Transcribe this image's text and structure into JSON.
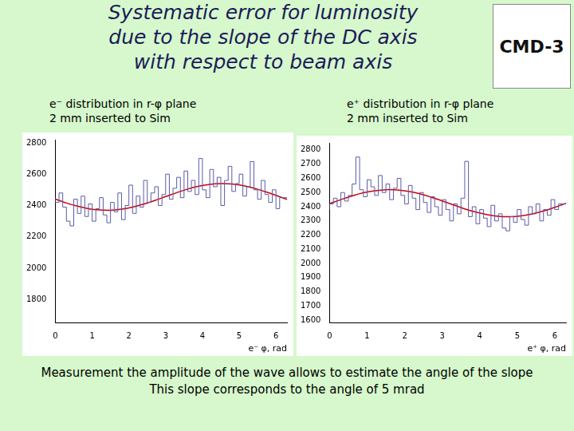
{
  "slide": {
    "title": [
      "Systematic error for luminosity",
      "due to the slope of the DC axis",
      "with respect to beam axis"
    ],
    "logo": "CMD-3",
    "caption": [
      "Measurement the amplitude of the wave allows to estimate the angle of the slope",
      "This slope corresponds to the angle of 5 mrad"
    ]
  },
  "chart_data": [
    {
      "type": "histogram",
      "subtitle": [
        "e⁻ distribution in r-φ plane",
        "2 mm inserted to Sim"
      ],
      "x_label": "e⁻ φ, rad",
      "xlim": [
        0,
        6.3
      ],
      "xticks": [
        0,
        1,
        2,
        3,
        4,
        5,
        6
      ],
      "ylim": [
        1650,
        2820
      ],
      "yticks": [
        1800,
        2000,
        2200,
        2400,
        2600,
        2800
      ],
      "grid": false,
      "legend": false,
      "bins": [
        0,
        0.1,
        0.2,
        0.3,
        0.4,
        0.5,
        0.6,
        0.7,
        0.8,
        0.9,
        1,
        1.1,
        1.2,
        1.3,
        1.4,
        1.5,
        1.6,
        1.7,
        1.8,
        1.9,
        2,
        2.1,
        2.2,
        2.3,
        2.4,
        2.5,
        2.6,
        2.7,
        2.8,
        2.9,
        3,
        3.1,
        3.2,
        3.3,
        3.4,
        3.5,
        3.6,
        3.7,
        3.8,
        3.9,
        4,
        4.1,
        4.2,
        4.3,
        4.4,
        4.5,
        4.6,
        4.7,
        4.8,
        4.9,
        5,
        5.1,
        5.2,
        5.3,
        5.4,
        5.5,
        5.6,
        5.7,
        5.8,
        5.9,
        6,
        6.1,
        6.2,
        6.3
      ],
      "counts": [
        2450,
        2420,
        2480,
        2390,
        2300,
        2270,
        2440,
        2350,
        2460,
        2330,
        2410,
        2300,
        2380,
        2450,
        2340,
        2290,
        2420,
        2360,
        2480,
        2310,
        2400,
        2530,
        2350,
        2460,
        2390,
        2560,
        2420,
        2480,
        2520,
        2400,
        2470,
        2600,
        2440,
        2510,
        2580,
        2450,
        2620,
        2490,
        2560,
        2470,
        2700,
        2500,
        2450,
        2630,
        2520,
        2580,
        2400,
        2560,
        2650,
        2490,
        2540,
        2600,
        2460,
        2520,
        2680,
        2500,
        2440,
        2560,
        2470,
        2420,
        2500,
        2380,
        2450
      ],
      "color": "#5b5ba8",
      "fit": {
        "type": "line",
        "color": "#cc0000",
        "x": [
          0,
          0.3,
          0.6,
          0.9,
          1.2,
          1.5,
          1.8,
          2.1,
          2.4,
          2.7,
          3,
          3.3,
          3.6,
          3.9,
          4.2,
          4.5,
          4.8,
          5.1,
          5.4,
          5.7,
          6,
          6.3
        ],
        "y": [
          2441,
          2416,
          2396,
          2380,
          2372,
          2370,
          2377,
          2390,
          2409,
          2432,
          2457,
          2482,
          2505,
          2523,
          2535,
          2540,
          2537,
          2527,
          2511,
          2489,
          2465,
          2439
        ]
      }
    },
    {
      "type": "histogram",
      "subtitle": [
        "e⁺ distribution in r-φ plane",
        "2 mm inserted to Sim"
      ],
      "x_label": "e⁺ φ, rad",
      "xlim": [
        0,
        6.3
      ],
      "xticks": [
        0,
        1,
        2,
        3,
        4,
        5,
        6
      ],
      "ylim": [
        1580,
        2850
      ],
      "yticks": [
        1600,
        1700,
        1800,
        1900,
        2000,
        2100,
        2200,
        2300,
        2400,
        2500,
        2600,
        2700,
        2800
      ],
      "grid": false,
      "legend": false,
      "bins": [
        0,
        0.1,
        0.2,
        0.3,
        0.4,
        0.5,
        0.6,
        0.7,
        0.8,
        0.9,
        1,
        1.1,
        1.2,
        1.3,
        1.4,
        1.5,
        1.6,
        1.7,
        1.8,
        1.9,
        2,
        2.1,
        2.2,
        2.3,
        2.4,
        2.5,
        2.6,
        2.7,
        2.8,
        2.9,
        3,
        3.1,
        3.2,
        3.3,
        3.4,
        3.5,
        3.6,
        3.7,
        3.8,
        3.9,
        4,
        4.1,
        4.2,
        4.3,
        4.4,
        4.5,
        4.6,
        4.7,
        4.8,
        4.9,
        5,
        5.1,
        5.2,
        5.3,
        5.4,
        5.5,
        5.6,
        5.7,
        5.8,
        5.9,
        6,
        6.1,
        6.2,
        6.3
      ],
      "counts": [
        2380,
        2420,
        2460,
        2400,
        2500,
        2440,
        2480,
        2560,
        2750,
        2520,
        2470,
        2590,
        2540,
        2480,
        2620,
        2500,
        2560,
        2450,
        2530,
        2600,
        2480,
        2420,
        2550,
        2460,
        2380,
        2500,
        2430,
        2360,
        2470,
        2400,
        2340,
        2450,
        2380,
        2300,
        2420,
        2350,
        2460,
        2720,
        2330,
        2400,
        2280,
        2380,
        2320,
        2260,
        2410,
        2300,
        2350,
        2250,
        2230,
        2330,
        2290,
        2380,
        2310,
        2270,
        2400,
        2350,
        2420,
        2300,
        2380,
        2340,
        2450,
        2380,
        2420
      ],
      "color": "#5b5ba8",
      "fit": {
        "type": "line",
        "color": "#cc0000",
        "x": [
          0,
          0.3,
          0.6,
          0.9,
          1.2,
          1.5,
          1.8,
          2.1,
          2.4,
          2.7,
          3,
          3.3,
          3.6,
          3.9,
          4.2,
          4.5,
          4.8,
          5.1,
          5.4,
          5.7,
          6,
          6.3
        ],
        "y": [
          2422,
          2450,
          2476,
          2498,
          2512,
          2520,
          2518,
          2508,
          2491,
          2468,
          2441,
          2413,
          2385,
          2362,
          2344,
          2333,
          2330,
          2336,
          2350,
          2370,
          2396,
          2424
        ]
      }
    }
  ]
}
